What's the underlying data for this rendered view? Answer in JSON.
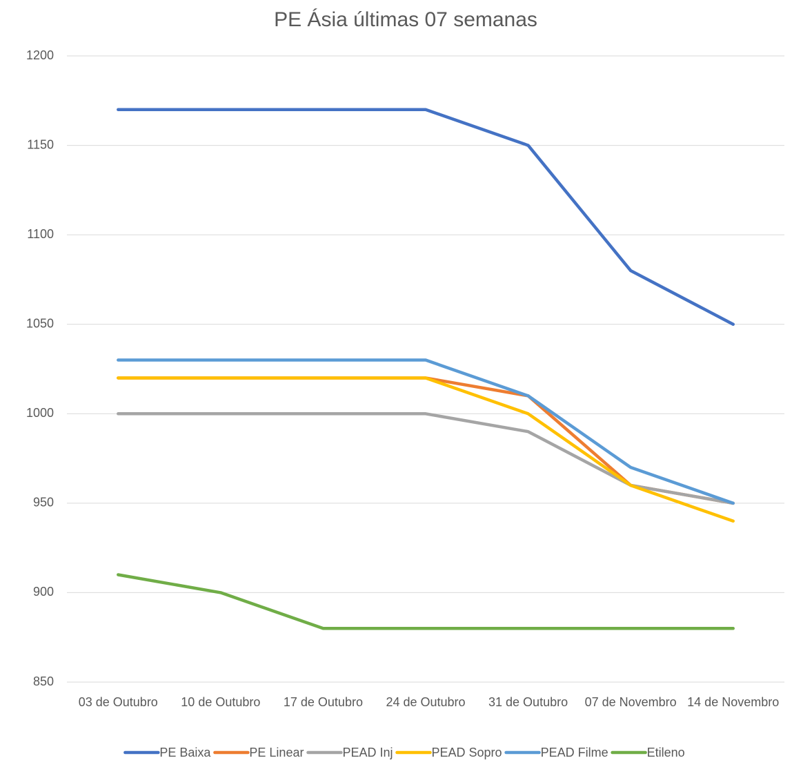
{
  "chart_data": {
    "type": "line",
    "title": "PE Ásia últimas 07 semanas",
    "categories": [
      "03 de Outubro",
      "10 de Outubro",
      "17 de Outubro",
      "24 de Outubro",
      "31 de Outubro",
      "07 de Novembro",
      "14 de Novembro"
    ],
    "series": [
      {
        "name": "PE Baixa",
        "color": "#4472c4",
        "values": [
          1170,
          1170,
          1170,
          1170,
          1150,
          1080,
          1050
        ]
      },
      {
        "name": "PE Linear",
        "color": "#ed7d31",
        "values": [
          1020,
          1020,
          1020,
          1020,
          1010,
          960,
          950
        ]
      },
      {
        "name": "PEAD Inj",
        "color": "#a5a5a5",
        "values": [
          1000,
          1000,
          1000,
          1000,
          990,
          960,
          950
        ]
      },
      {
        "name": "PEAD Sopro",
        "color": "#ffc000",
        "values": [
          1020,
          1020,
          1020,
          1020,
          1000,
          960,
          940
        ]
      },
      {
        "name": "PEAD Filme",
        "color": "#5b9bd5",
        "values": [
          1030,
          1030,
          1030,
          1030,
          1010,
          970,
          950
        ]
      },
      {
        "name": "Etileno",
        "color": "#70ad47",
        "values": [
          910,
          900,
          880,
          880,
          880,
          880,
          880
        ]
      }
    ],
    "ylim": [
      850,
      1200
    ],
    "yticks": [
      850,
      900,
      950,
      1000,
      1050,
      1100,
      1150,
      1200
    ],
    "grid": true,
    "legend": "bottom"
  }
}
